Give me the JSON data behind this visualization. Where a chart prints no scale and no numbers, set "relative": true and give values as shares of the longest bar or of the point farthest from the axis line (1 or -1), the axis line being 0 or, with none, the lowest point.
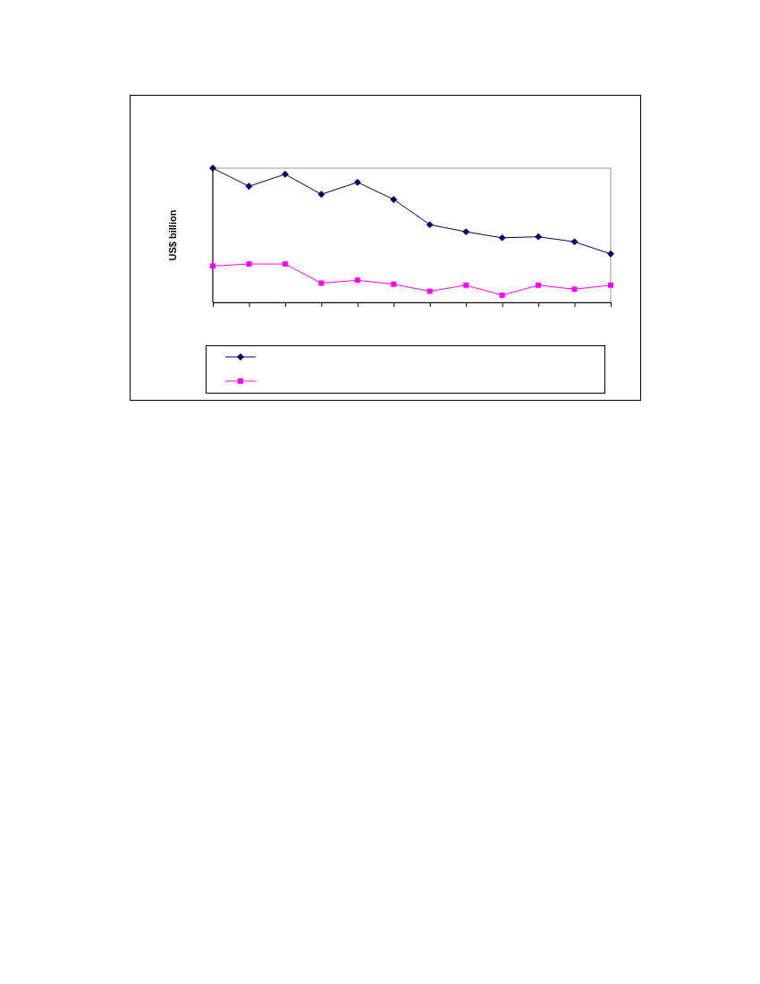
{
  "chart_data": {
    "type": "line",
    "ylabel": "US$ billion",
    "relative": true,
    "categories": [
      null,
      null,
      null,
      null,
      null,
      null,
      null,
      null,
      null,
      null,
      null,
      null
    ],
    "series": [
      {
        "color": "#000066",
        "marker": "diamond",
        "values": [
          1,
          0.865,
          0.955,
          0.805,
          0.895,
          0.767,
          0.579,
          0.526,
          0.481,
          0.489,
          0.451,
          0.361
        ]
      },
      {
        "color": "#ff00ff",
        "marker": "square",
        "values": [
          0.271,
          0.286,
          0.286,
          0.143,
          0.165,
          0.135,
          0.083,
          0.128,
          0.053,
          0.128,
          0.098,
          0.128
        ]
      }
    ],
    "grid": false
  }
}
